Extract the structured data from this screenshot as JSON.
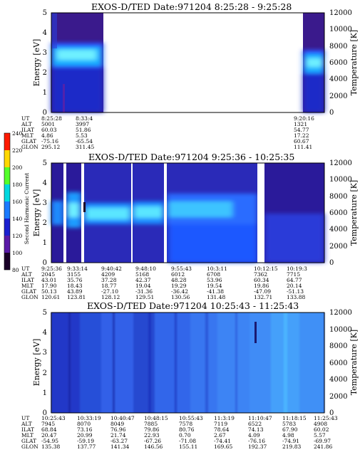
{
  "panels": [
    {
      "title": "EXOS-D/TED   Date:971204   8:25:28 - 9:25:28",
      "ylabel": "Energy [eV]",
      "y2label": "Temperature [K]",
      "ylim": [
        0,
        5
      ],
      "yticks": [
        "0",
        "1",
        "2",
        "3",
        "4",
        "5"
      ],
      "y2lim": [
        0,
        12000
      ],
      "y2ticks": [
        "0",
        "2000",
        "4000",
        "6000",
        "8000",
        "10000",
        "12000"
      ],
      "orbit_labels": [
        "UT",
        "ALT",
        "ILAT",
        "MLT",
        "GLAT",
        "GLON"
      ],
      "orbit_columns": [
        [
          "8:25:28",
          "5001",
          "60.03",
          "4.86",
          "-75.16",
          "295.12"
        ],
        [
          "8:33:4",
          "3997",
          "51.86",
          "5.53",
          "-65.54",
          "311.45"
        ],
        [
          "9:20:16",
          "1321",
          "54.77",
          "17.22",
          "60.67",
          "111.41"
        ]
      ]
    },
    {
      "title": "EXOS-D/TED   Date:971204   9:25:36 - 10:25:35",
      "ylabel": "Energy [eV]",
      "y2label": "Temperature [K]",
      "ylim": [
        0,
        5
      ],
      "yticks": [
        "0",
        "1",
        "2",
        "3",
        "4",
        "5"
      ],
      "y2lim": [
        0,
        12000
      ],
      "y2ticks": [
        "0",
        "2000",
        "4000",
        "6000",
        "8000",
        "10000",
        "12000"
      ],
      "orbit_labels": [
        "UT",
        "ALT",
        "ILAT",
        "MLT",
        "GLAT",
        "GLON"
      ],
      "orbit_columns": [
        [
          "9:25:36",
          "2045",
          "43.01",
          "17.90",
          "50.13",
          "120.61"
        ],
        [
          "9:33:14",
          "3155",
          "35.76",
          "18.43",
          "43.89",
          "123.81"
        ],
        [
          "9:40:42",
          "4209",
          "37.28",
          "18.77",
          "-27.10",
          "128.12"
        ],
        [
          "9:48:10",
          "5168",
          "42.37",
          "19.04",
          "-31.36",
          "129.51"
        ],
        [
          "9:55:43",
          "6012",
          "48.28",
          "19.29",
          "-36.42",
          "130.56"
        ],
        [
          "10:3:11",
          "6708",
          "53.96",
          "19.54",
          "-41.38",
          "131.48"
        ],
        [
          "10:12:15",
          "7362",
          "60.34",
          "19.86",
          "-47.09",
          "132.71"
        ],
        [
          "10:19:3",
          "7715",
          "64.77",
          "20.14",
          "-51.13",
          "133.88"
        ]
      ]
    },
    {
      "title": "EXOS-D/TED   Date:971204   10:25:43 - 11:25:43",
      "ylabel": "Energy [eV]",
      "y2label": "Temperature [K]",
      "ylim": [
        0,
        5
      ],
      "yticks": [
        "0",
        "1",
        "2",
        "3",
        "4",
        "5"
      ],
      "y2lim": [
        0,
        12000
      ],
      "y2ticks": [
        "0",
        "2000",
        "4000",
        "6000",
        "8000",
        "10000",
        "12000"
      ],
      "orbit_labels": [
        "UT",
        "ALT",
        "ILAT",
        "MLT",
        "GLAT",
        "GLON"
      ],
      "orbit_columns": [
        [
          "10:25:43",
          "7945",
          "68.84",
          "20.47",
          "-54.95",
          "135.38"
        ],
        [
          "10:33:19",
          "8070",
          "73.16",
          "20.99",
          "-59.19",
          "137.77"
        ],
        [
          "10:40:47",
          "8049",
          "76.96",
          "21.74",
          "-63.27",
          "141.34"
        ],
        [
          "10:48:15",
          "7885",
          "79.86",
          "22.93",
          "-67.26",
          "146.56"
        ],
        [
          "10:55:43",
          "7578",
          "80.76",
          "0.70",
          "-71.08",
          "155.11"
        ],
        [
          "11:3:19",
          "7119",
          "78.64",
          "2.67",
          "-74.41",
          "169.65"
        ],
        [
          "11:10:47",
          "6522",
          "74.13",
          "4.09",
          "-76.16",
          "192.37"
        ],
        [
          "11:18:15",
          "5783",
          "67.90",
          "4.98",
          "-74.91",
          "219.83"
        ],
        [
          "11:25:43",
          "4908",
          "60.02",
          "5.57",
          "-69.97",
          "241.86"
        ]
      ]
    }
  ],
  "colorbar": {
    "label": "Second Harmonic Current",
    "ticks": [
      "80",
      "100",
      "120",
      "140",
      "160",
      "180",
      "200",
      "220",
      "240"
    ],
    "range": [
      80,
      240
    ]
  },
  "chart_data": [
    {
      "type": "heatmap",
      "title": "EXOS-D/TED   Date:971204   8:25:28 - 9:25:28",
      "ylabel": "Energy [eV]",
      "ylim": [
        0,
        5
      ],
      "y2label": "Temperature [K]",
      "y2lim": [
        0,
        12000
      ],
      "x_ticks": [
        "8:25:28",
        "8:33:4",
        "9:20:16"
      ],
      "data_intervals_fraction": [
        [
          0.0,
          0.135
        ],
        [
          0.868,
          1.0
        ]
      ],
      "intensity_range": [
        80,
        240
      ]
    },
    {
      "type": "heatmap",
      "title": "EXOS-D/TED   Date:971204   9:25:36 - 10:25:35",
      "ylabel": "Energy [eV]",
      "ylim": [
        0,
        5
      ],
      "y2label": "Temperature [K]",
      "y2lim": [
        0,
        12000
      ],
      "x_ticks": [
        "9:25:36",
        "9:33:14",
        "9:40:42",
        "9:48:10",
        "9:55:43",
        "10:3:11",
        "10:12:15",
        "10:19:3"
      ],
      "data_intervals_fraction": [
        [
          0.0,
          0.045
        ],
        [
          0.055,
          0.09
        ],
        [
          0.1,
          0.28
        ],
        [
          0.29,
          0.41
        ],
        [
          0.42,
          0.785
        ],
        [
          0.81,
          1.0
        ]
      ],
      "intensity_range": [
        80,
        240
      ]
    },
    {
      "type": "heatmap",
      "title": "EXOS-D/TED   Date:971204   10:25:43 - 11:25:43",
      "ylabel": "Energy [eV]",
      "ylim": [
        0,
        5
      ],
      "y2label": "Temperature [K]",
      "y2lim": [
        0,
        12000
      ],
      "x_ticks": [
        "10:25:43",
        "10:33:19",
        "10:40:47",
        "10:48:15",
        "10:55:43",
        "11:3:19",
        "11:10:47",
        "11:18:15",
        "11:25:43"
      ],
      "data_intervals_fraction": [
        [
          0.0,
          1.0
        ]
      ],
      "intensity_range": [
        80,
        240
      ]
    }
  ]
}
